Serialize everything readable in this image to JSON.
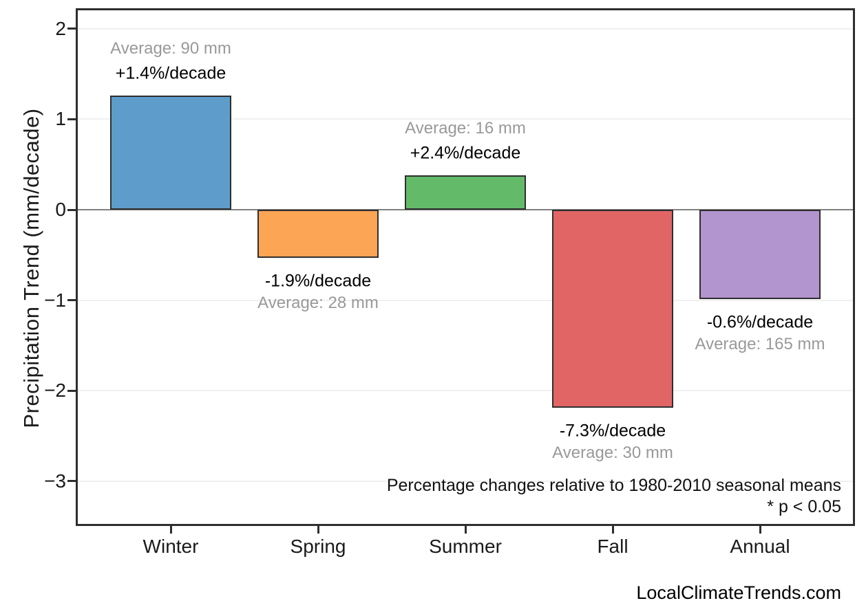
{
  "chart_data": {
    "type": "bar",
    "title": "",
    "xlabel": "",
    "ylabel": "Precipitation Trend (mm/decade)",
    "categories": [
      "Winter",
      "Spring",
      "Summer",
      "Fall",
      "Annual"
    ],
    "values": [
      1.26,
      -0.53,
      0.38,
      -2.19,
      -0.99
    ],
    "bar_colors": [
      "#5E9DCB",
      "#FCA555",
      "#63BB6A",
      "#E26565",
      "#B294CE"
    ],
    "bar_edge_color": "#2e2e2e",
    "percent_labels": [
      "+1.4%/decade",
      "-1.9%/decade",
      "+2.4%/decade",
      "-7.3%/decade",
      "-0.6%/decade"
    ],
    "average_labels": [
      "Average: 90 mm",
      "Average: 28 mm",
      "Average: 16 mm",
      "Average: 30 mm",
      "Average: 165 mm"
    ],
    "averages_mm": [
      90,
      28,
      16,
      30,
      165
    ],
    "yticks": [
      2,
      1,
      0,
      -1,
      -2,
      -3
    ],
    "ytick_labels": [
      "2",
      "1",
      "0",
      "−1",
      "−2",
      "−3"
    ],
    "ylim": [
      -3.5,
      2.2
    ],
    "grid": true,
    "gridline_color": "#f0f0f0",
    "zero_line_color": "#808080",
    "legend": "none",
    "notes": {
      "line1": "Percentage changes relative to 1980-2010 seasonal means",
      "line2": "* p < 0.05"
    }
  },
  "footer": {
    "source": "LocalClimateTrends.com"
  }
}
